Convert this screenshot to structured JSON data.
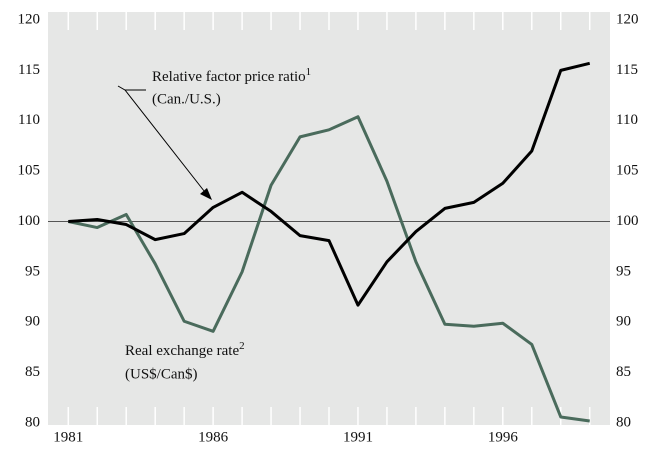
{
  "chart_data": {
    "type": "line",
    "x": [
      1981,
      1982,
      1983,
      1984,
      1985,
      1986,
      1987,
      1988,
      1989,
      1990,
      1991,
      1992,
      1993,
      1994,
      1995,
      1996,
      1997,
      1998,
      1999
    ],
    "series": [
      {
        "name": "Relative factor price ratio",
        "superscript": "1",
        "subtitle": "(Can./U.S.)",
        "color": "#000000",
        "values": [
          100,
          100.2,
          99.7,
          98.2,
          98.8,
          101.4,
          102.9,
          101,
          98.6,
          98.1,
          91.7,
          96,
          99,
          101.3,
          101.9,
          103.8,
          107,
          115,
          115.7
        ]
      },
      {
        "name": "Real exchange rate",
        "superscript": "2",
        "subtitle": "(US$/Can$)",
        "color": "#4a6b5c",
        "values": [
          100,
          99.4,
          100.7,
          95.8,
          90.1,
          89.1,
          95,
          103.6,
          108.4,
          109.1,
          110.4,
          104,
          96,
          89.8,
          89.6,
          89.9,
          87.8,
          80.6,
          80.2
        ]
      }
    ],
    "xlim": [
      1980.3,
      1999.7
    ],
    "xticks": [
      1981,
      1986,
      1991,
      1996
    ],
    "ylim": [
      80,
      120
    ],
    "yticks": [
      80,
      85,
      90,
      95,
      100,
      105,
      110,
      115,
      120
    ],
    "y2lim": [
      80,
      120
    ],
    "y2ticks": [
      80,
      85,
      90,
      95,
      100,
      105,
      110,
      115,
      120
    ],
    "reference_line": 100
  }
}
